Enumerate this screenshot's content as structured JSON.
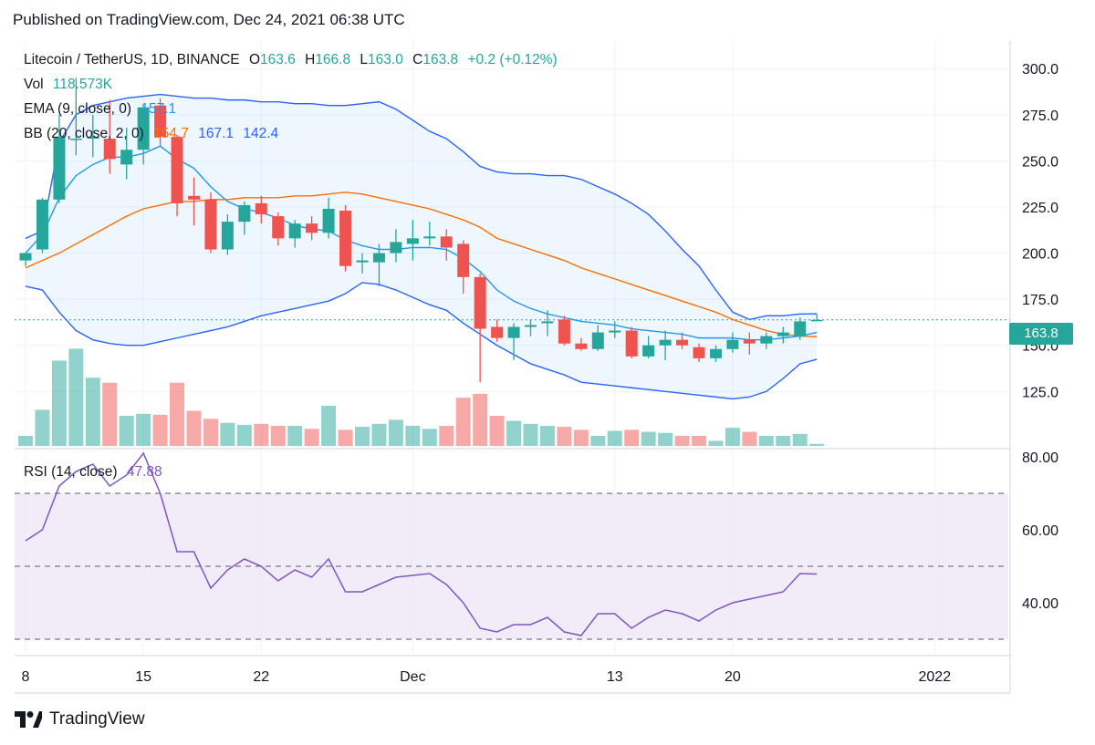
{
  "header": {
    "published": "Published on TradingView.com, Dec 24, 2021 06:38 UTC"
  },
  "legend": {
    "symbol": "Litecoin / TetherUS, 1D, BINANCE",
    "open_label": "O",
    "open": "163.6",
    "high_label": "H",
    "high": "166.8",
    "low_label": "L",
    "low": "163.0",
    "close_label": "C",
    "close": "163.8",
    "change": "+0.2 (+0.12%)",
    "vol_label": "Vol",
    "vol_value": "118.573K",
    "ema_label": "EMA (9, close, 0)",
    "ema_value": "157.1",
    "bb_label": "BB (20, close, 2, 0)",
    "bb_mid": "154.7",
    "bb_upper": "167.1",
    "bb_lower": "142.4",
    "rsi_label": "RSI (14, close)",
    "rsi_value": "47.88"
  },
  "price_badge": "163.8",
  "footer": {
    "brand": "TradingView",
    "logo_icon": "tradingview-logo-icon"
  },
  "colors": {
    "up": "#26a69a",
    "down": "#ef5350",
    "ema": "#2196f3",
    "bb_mid": "#ff6d00",
    "bb_band": "#2962ff",
    "rsi": "#7e57c2"
  },
  "chart_data": {
    "type": "candlestick",
    "price_axis": {
      "ylim": [
        95,
        310
      ],
      "ticks": [
        "300.0",
        "275.0",
        "250.0",
        "225.0",
        "200.0",
        "175.0",
        "150.0",
        "125.0"
      ],
      "tick_values": [
        300,
        275,
        250,
        225,
        200,
        175,
        150,
        125
      ]
    },
    "rsi_axis": {
      "ylim": [
        26,
        82
      ],
      "ticks": [
        "80.00",
        "60.00",
        "40.00"
      ],
      "tick_values": [
        80,
        60,
        40
      ],
      "band": [
        30,
        70
      ],
      "mid": 50
    },
    "x_ticks": [
      {
        "label": "8",
        "index": 0
      },
      {
        "label": "15",
        "index": 7
      },
      {
        "label": "22",
        "index": 14
      },
      {
        "label": "Dec",
        "index": 23
      },
      {
        "label": "13",
        "index": 35
      },
      {
        "label": "20",
        "index": 42
      },
      {
        "label": "2022",
        "index": 54
      }
    ],
    "candles": [
      {
        "o": 196,
        "h": 200,
        "l": 193,
        "c": 200
      },
      {
        "o": 202,
        "h": 230,
        "l": 200,
        "c": 229
      },
      {
        "o": 229,
        "h": 275,
        "l": 227,
        "c": 263
      },
      {
        "o": 262,
        "h": 295,
        "l": 253,
        "c": 262
      },
      {
        "o": 262,
        "h": 275,
        "l": 252,
        "c": 263
      },
      {
        "o": 262,
        "h": 283,
        "l": 243,
        "c": 251
      },
      {
        "o": 248,
        "h": 268,
        "l": 240,
        "c": 256
      },
      {
        "o": 256,
        "h": 280,
        "l": 248,
        "c": 279
      },
      {
        "o": 280,
        "h": 284,
        "l": 258,
        "c": 263
      },
      {
        "o": 263,
        "h": 264,
        "l": 220,
        "c": 227
      },
      {
        "o": 231,
        "h": 241,
        "l": 215,
        "c": 229
      },
      {
        "o": 229,
        "h": 233,
        "l": 200,
        "c": 202
      },
      {
        "o": 202,
        "h": 221,
        "l": 199,
        "c": 217
      },
      {
        "o": 217,
        "h": 228,
        "l": 210,
        "c": 226
      },
      {
        "o": 227,
        "h": 231,
        "l": 216,
        "c": 221
      },
      {
        "o": 220,
        "h": 222,
        "l": 204,
        "c": 208
      },
      {
        "o": 208,
        "h": 218,
        "l": 203,
        "c": 216
      },
      {
        "o": 216,
        "h": 220,
        "l": 207,
        "c": 211
      },
      {
        "o": 211,
        "h": 230,
        "l": 208,
        "c": 224
      },
      {
        "o": 223,
        "h": 226,
        "l": 190,
        "c": 193
      },
      {
        "o": 195,
        "h": 200,
        "l": 189,
        "c": 196
      },
      {
        "o": 195,
        "h": 205,
        "l": 182,
        "c": 200
      },
      {
        "o": 200,
        "h": 213,
        "l": 195,
        "c": 206
      },
      {
        "o": 205,
        "h": 218,
        "l": 196,
        "c": 208
      },
      {
        "o": 208,
        "h": 217,
        "l": 204,
        "c": 209
      },
      {
        "o": 209,
        "h": 213,
        "l": 196,
        "c": 203
      },
      {
        "o": 205,
        "h": 207,
        "l": 178,
        "c": 187
      },
      {
        "o": 187,
        "h": 189,
        "l": 130,
        "c": 159
      },
      {
        "o": 160,
        "h": 164,
        "l": 152,
        "c": 154
      },
      {
        "o": 154,
        "h": 162,
        "l": 142,
        "c": 160
      },
      {
        "o": 160,
        "h": 164,
        "l": 155,
        "c": 161
      },
      {
        "o": 162,
        "h": 169,
        "l": 155,
        "c": 163
      },
      {
        "o": 164,
        "h": 166,
        "l": 150,
        "c": 151
      },
      {
        "o": 151,
        "h": 154,
        "l": 147,
        "c": 148
      },
      {
        "o": 148,
        "h": 161,
        "l": 147,
        "c": 157
      },
      {
        "o": 157,
        "h": 163,
        "l": 154,
        "c": 158
      },
      {
        "o": 158,
        "h": 160,
        "l": 143,
        "c": 144
      },
      {
        "o": 144,
        "h": 155,
        "l": 143,
        "c": 150
      },
      {
        "o": 150,
        "h": 158,
        "l": 142,
        "c": 153
      },
      {
        "o": 153,
        "h": 157,
        "l": 148,
        "c": 150
      },
      {
        "o": 149,
        "h": 151,
        "l": 141,
        "c": 143
      },
      {
        "o": 143,
        "h": 150,
        "l": 141,
        "c": 148
      },
      {
        "o": 148,
        "h": 157,
        "l": 146,
        "c": 153
      },
      {
        "o": 153,
        "h": 157,
        "l": 145,
        "c": 151
      },
      {
        "o": 151,
        "h": 157,
        "l": 148,
        "c": 155
      },
      {
        "o": 155,
        "h": 160,
        "l": 151,
        "c": 157
      },
      {
        "o": 155,
        "h": 165,
        "l": 153,
        "c": 163
      },
      {
        "o": 163.6,
        "h": 166.8,
        "l": 163.0,
        "c": 163.8
      }
    ],
    "volume_heights_relative": [
      0.1,
      0.36,
      0.85,
      0.97,
      0.68,
      0.63,
      0.3,
      0.32,
      0.31,
      0.63,
      0.35,
      0.27,
      0.23,
      0.21,
      0.22,
      0.2,
      0.2,
      0.17,
      0.4,
      0.16,
      0.19,
      0.22,
      0.26,
      0.2,
      0.17,
      0.2,
      0.48,
      0.52,
      0.3,
      0.25,
      0.22,
      0.2,
      0.19,
      0.16,
      0.1,
      0.15,
      0.16,
      0.14,
      0.13,
      0.1,
      0.1,
      0.05,
      0.18,
      0.14,
      0.1,
      0.1,
      0.12,
      0.02
    ],
    "ema9": [
      200,
      210,
      230,
      242,
      248,
      252,
      252,
      254,
      258,
      251,
      246,
      236,
      228,
      224,
      222,
      219,
      215,
      213,
      212,
      207,
      204,
      202,
      202,
      203,
      203,
      202,
      197,
      190,
      180,
      174,
      170,
      167,
      165,
      163,
      162,
      161,
      159,
      158,
      157,
      156,
      154,
      154,
      154,
      153,
      153,
      154,
      155,
      157
    ],
    "bb_mid": [
      192,
      196,
      200,
      205,
      210,
      215,
      220,
      224,
      226,
      228,
      228,
      229,
      229,
      230,
      230,
      230,
      231,
      231,
      232,
      233,
      232,
      230,
      228,
      226,
      224,
      221,
      218,
      214,
      208,
      205,
      202,
      199,
      196,
      192,
      189,
      186,
      183,
      180,
      177,
      174,
      171,
      168,
      164,
      161,
      158,
      156,
      155,
      154.7
    ],
    "bb_upper": [
      208,
      212,
      260,
      275,
      280,
      282,
      284,
      285,
      286,
      285,
      284,
      284,
      283,
      283,
      282,
      282,
      281,
      281,
      280,
      280,
      281,
      282,
      278,
      272,
      266,
      262,
      255,
      247,
      244,
      243,
      243,
      242,
      242,
      240,
      236,
      232,
      227,
      221,
      212,
      202,
      193,
      180,
      168,
      164,
      166,
      166,
      167,
      167.1
    ],
    "bb_lower": [
      182,
      180,
      168,
      158,
      153,
      151,
      150,
      150,
      152,
      154,
      156,
      158,
      160,
      163,
      166,
      168,
      170,
      172,
      174,
      178,
      184,
      183,
      180,
      176,
      172,
      169,
      162,
      156,
      150,
      145,
      140,
      137,
      134,
      130,
      129,
      128,
      127,
      126,
      125,
      124,
      123,
      122,
      121,
      122,
      125,
      132,
      140,
      142.4
    ],
    "rsi": [
      57,
      60,
      72,
      76,
      78,
      72,
      75,
      81,
      70,
      54,
      54,
      44,
      49,
      52,
      50,
      46,
      49,
      47,
      52,
      43,
      43,
      45,
      47,
      47.5,
      48,
      45,
      40,
      33,
      32,
      34,
      34,
      36,
      32,
      31,
      37,
      37,
      33,
      36,
      38,
      37,
      35,
      38,
      40,
      41,
      42,
      43,
      48,
      47.88
    ]
  }
}
